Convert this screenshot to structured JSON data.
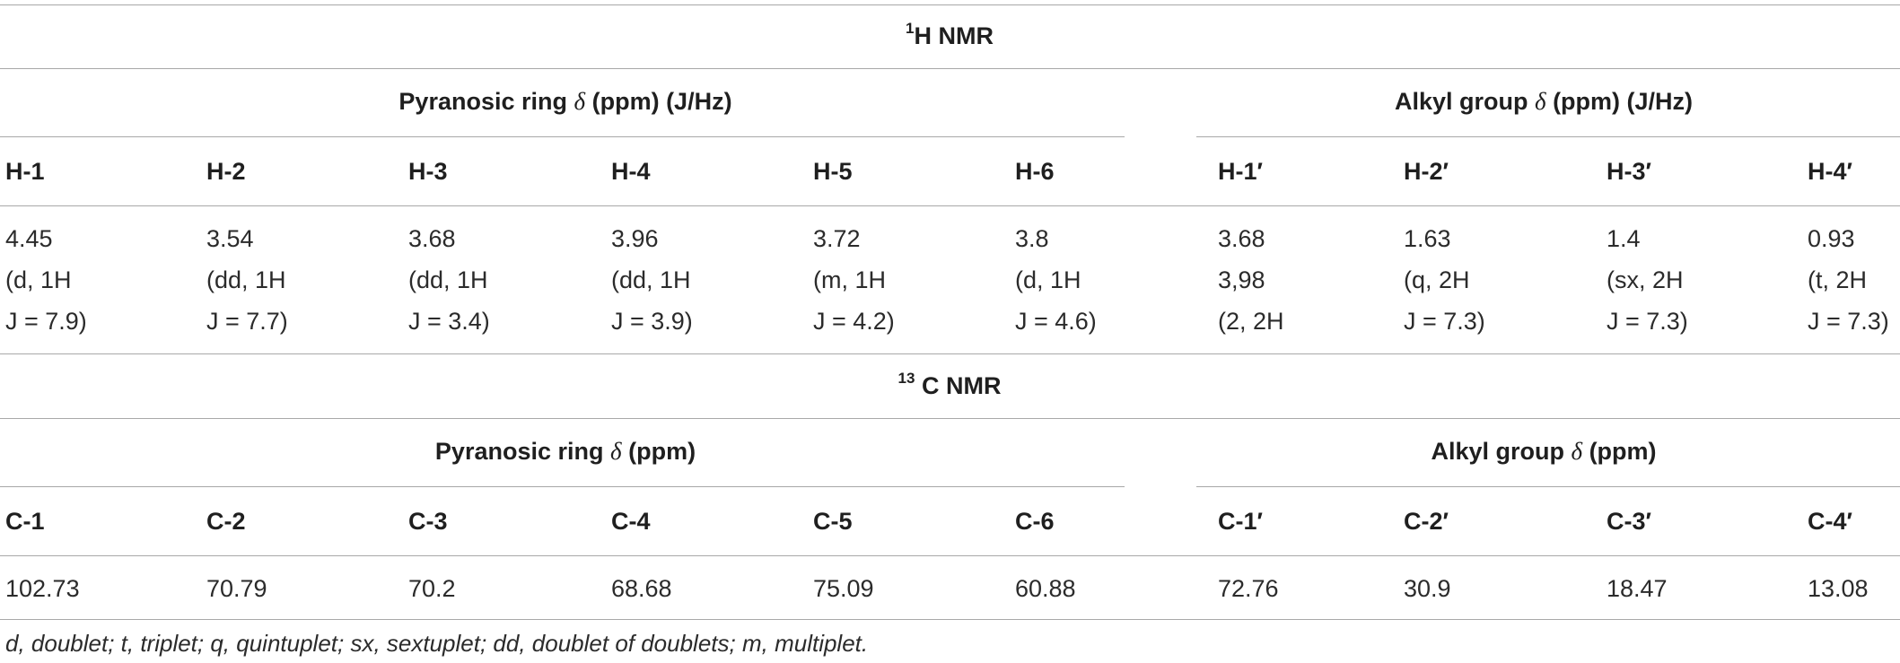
{
  "h_nmr": {
    "title_sup": "1",
    "title": "H NMR",
    "pyranosic_header": {
      "label": "Pyranosic ring",
      "symbol": "δ",
      "units": "(ppm) (J/Hz)"
    },
    "alkyl_header": {
      "label": "Alkyl group",
      "symbol": "δ",
      "units": "(ppm) (J/Hz)"
    },
    "columns": [
      "H-1",
      "H-2",
      "H-3",
      "H-4",
      "H-5",
      "H-6",
      "H-1′",
      "H-2′",
      "H-3′",
      "H-4′"
    ],
    "values": [
      [
        "4.45",
        "(d, 1H",
        "J = 7.9)"
      ],
      [
        "3.54",
        "(dd, 1H",
        "J = 7.7)"
      ],
      [
        "3.68",
        "(dd, 1H",
        "J = 3.4)"
      ],
      [
        "3.96",
        "(dd, 1H",
        "J = 3.9)"
      ],
      [
        "3.72",
        "(m, 1H",
        "J = 4.2)"
      ],
      [
        "3.8",
        "(d, 1H",
        "J = 4.6)"
      ],
      [
        "3.68",
        "3,98",
        "(2, 2H"
      ],
      [
        "1.63",
        "(q, 2H",
        "J = 7.3)"
      ],
      [
        "1.4",
        "(sx, 2H",
        "J = 7.3)"
      ],
      [
        "0.93",
        "(t, 2H",
        "J = 7.3)"
      ]
    ]
  },
  "c_nmr": {
    "title_sup": "13",
    "title": "C NMR",
    "pyranosic_header": {
      "label": "Pyranosic ring",
      "symbol": "δ",
      "units": "(ppm)"
    },
    "alkyl_header": {
      "label": "Alkyl group",
      "symbol": "δ",
      "units": "(ppm)"
    },
    "columns": [
      "C-1",
      "C-2",
      "C-3",
      "C-4",
      "C-5",
      "C-6",
      "C-1′",
      "C-2′",
      "C-3′",
      "C-4′"
    ],
    "values": [
      "102.73",
      "70.79",
      "70.2",
      "68.68",
      "75.09",
      "60.88",
      "72.76",
      "30.9",
      "18.47",
      "13.08"
    ]
  },
  "footnote": "d, doublet; t, triplet; q, quintuplet; sx, sextuplet; dd, doublet of doublets; m, multiplet."
}
